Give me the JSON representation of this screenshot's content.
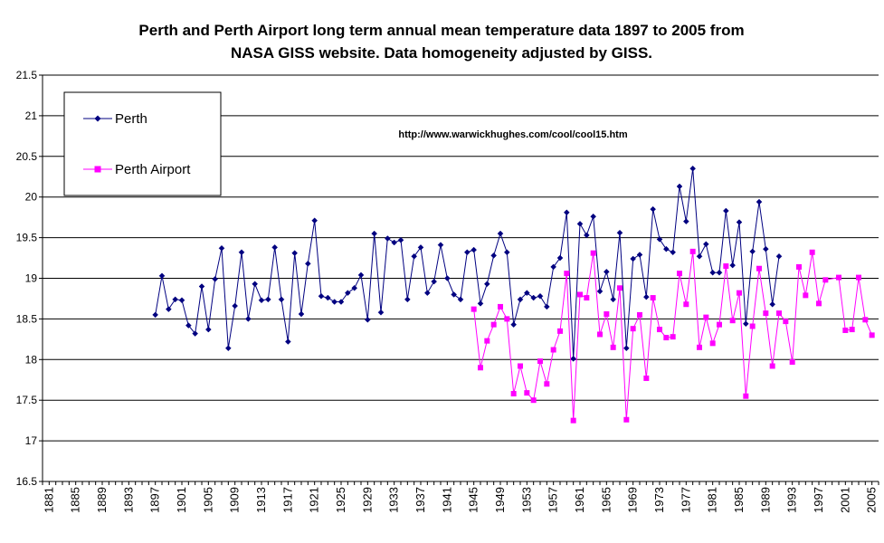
{
  "chart_data": {
    "type": "line",
    "title": [
      "Perth and Perth Airport long term annual mean temperature data 1897 to 2005 from",
      "NASA GISS website.  Data homogeneity adjusted by GISS."
    ],
    "annotation": "http://www.warwickhughes.com/cool/cool15.htm",
    "xlim": [
      1880,
      2006
    ],
    "ylim": [
      16.5,
      21.5
    ],
    "y_ticks": [
      "16.5",
      "17",
      "17.5",
      "18",
      "18.5",
      "19",
      "19.5",
      "20",
      "20.5",
      "21",
      "21.5"
    ],
    "x_ticks": [
      "1881",
      "1885",
      "1889",
      "1893",
      "1897",
      "1901",
      "1905",
      "1909",
      "1913",
      "1917",
      "1921",
      "1925",
      "1929",
      "1933",
      "1937",
      "1941",
      "1945",
      "1949",
      "1953",
      "1957",
      "1961",
      "1965",
      "1969",
      "1973",
      "1977",
      "1981",
      "1985",
      "1989",
      "1993",
      "1997",
      "2001",
      "2005"
    ],
    "grid": "horizontal",
    "legend_position": "top-left",
    "series": [
      {
        "name": "Perth",
        "color": "#000080",
        "marker": "diamond",
        "x": [
          1897,
          1898,
          1899,
          1900,
          1901,
          1902,
          1903,
          1904,
          1905,
          1906,
          1907,
          1908,
          1909,
          1910,
          1911,
          1912,
          1913,
          1914,
          1915,
          1916,
          1917,
          1918,
          1919,
          1920,
          1921,
          1922,
          1923,
          1924,
          1925,
          1926,
          1927,
          1928,
          1929,
          1930,
          1931,
          1932,
          1933,
          1934,
          1935,
          1936,
          1937,
          1938,
          1939,
          1940,
          1941,
          1942,
          1943,
          1944,
          1945,
          1946,
          1947,
          1948,
          1949,
          1950,
          1951,
          1952,
          1953,
          1954,
          1955,
          1956,
          1957,
          1958,
          1959,
          1960,
          1961,
          1962,
          1963,
          1964,
          1965,
          1966,
          1967,
          1968,
          1969,
          1970,
          1971,
          1972,
          1973,
          1974,
          1975,
          1976,
          1977,
          1978,
          1979,
          1980,
          1981,
          1982,
          1983,
          1984,
          1985,
          1986,
          1987,
          1988,
          1989,
          1990,
          1991
        ],
        "y": [
          18.55,
          19.03,
          18.62,
          18.74,
          18.73,
          18.42,
          18.32,
          18.9,
          18.37,
          18.99,
          19.37,
          18.14,
          18.66,
          19.32,
          18.5,
          18.93,
          18.73,
          18.74,
          19.38,
          18.74,
          18.22,
          19.31,
          18.56,
          19.18,
          19.71,
          18.78,
          18.76,
          18.71,
          18.71,
          18.82,
          18.88,
          19.04,
          18.49,
          19.55,
          18.58,
          19.49,
          19.44,
          19.47,
          18.74,
          19.27,
          19.38,
          18.82,
          18.96,
          19.41,
          19.0,
          18.8,
          18.74,
          19.32,
          19.35,
          18.69,
          18.93,
          19.28,
          19.55,
          19.32,
          18.43,
          18.74,
          18.82,
          18.76,
          18.78,
          18.65,
          19.14,
          19.25,
          19.81,
          18.01,
          19.67,
          19.53,
          19.76,
          18.84,
          19.08,
          18.74,
          19.56,
          18.14,
          19.24,
          19.29,
          18.77,
          19.85,
          19.48,
          19.36,
          19.32,
          20.13,
          19.7,
          20.35,
          19.27,
          19.42,
          19.07,
          19.07,
          19.83,
          19.16,
          19.69,
          18.44,
          19.33,
          19.94,
          19.36,
          18.68,
          19.27
        ]
      },
      {
        "name": "Perth Airport",
        "color": "#FF00FF",
        "marker": "square",
        "x": [
          1945,
          1946,
          1947,
          1948,
          1949,
          1950,
          1951,
          1952,
          1953,
          1954,
          1955,
          1956,
          1957,
          1958,
          1959,
          1960,
          1961,
          1962,
          1963,
          1964,
          1965,
          1966,
          1967,
          1968,
          1969,
          1970,
          1971,
          1972,
          1973,
          1974,
          1975,
          1976,
          1977,
          1978,
          1979,
          1980,
          1981,
          1982,
          1983,
          1984,
          1985,
          1986,
          1987,
          1988,
          1989,
          1990,
          1991,
          1992,
          1993,
          1994,
          1995,
          1996,
          1997,
          1998,
          2000,
          2001,
          2002,
          2003,
          2004,
          2005
        ],
        "y": [
          18.62,
          17.9,
          18.23,
          18.43,
          18.65,
          18.5,
          17.58,
          17.92,
          17.59,
          17.5,
          17.98,
          17.7,
          18.12,
          18.35,
          19.06,
          17.25,
          18.8,
          18.76,
          19.31,
          18.31,
          18.56,
          18.15,
          18.88,
          17.26,
          18.38,
          18.55,
          17.77,
          18.76,
          18.37,
          18.27,
          18.28,
          19.06,
          18.68,
          19.33,
          18.15,
          18.52,
          18.2,
          18.43,
          19.15,
          18.48,
          18.82,
          17.55,
          18.41,
          19.12,
          18.57,
          17.92,
          18.57,
          18.47,
          17.97,
          19.14,
          18.79,
          19.32,
          18.69,
          18.98,
          19.01,
          18.36,
          18.37,
          19.01,
          18.49,
          18.3
        ]
      }
    ]
  }
}
